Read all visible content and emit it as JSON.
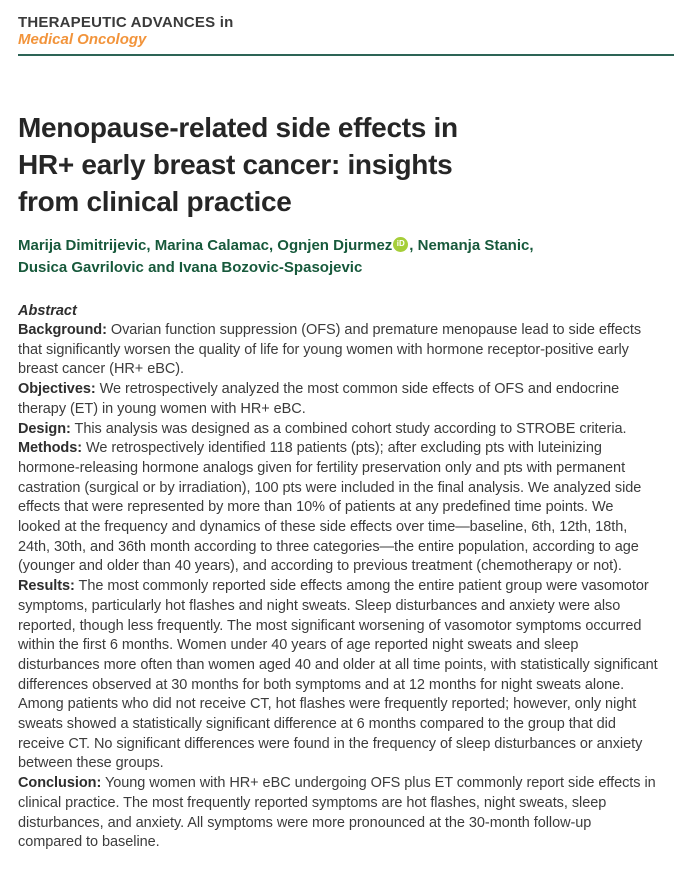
{
  "header": {
    "series_title": "THERAPEUTIC ADVANCES in",
    "journal_name": "Medical Oncology"
  },
  "article": {
    "title": "Menopause-related side effects in\nHR+ early breast cancer: insights\nfrom clinical practice",
    "authors": {
      "line1_before_icon": "Marija Dimitrijevic, Marina Calamac, Ognjen Djurmez",
      "line1_after_icon": ", Nemanja Stanic,",
      "line2": "Dusica Gavrilovic and Ivana Bozovic-Spasojevic"
    },
    "orcid_icon_text": "iD"
  },
  "abstract": {
    "heading": "Abstract",
    "sections": [
      {
        "label": "Background:",
        "text": "Ovarian function suppression (OFS) and premature menopause lead to side effects that significantly worsen the quality of life for young women with hormone receptor-positive early breast cancer (HR+ eBC)."
      },
      {
        "label": "Objectives:",
        "text": "We retrospectively analyzed the most common side effects of OFS and endocrine therapy (ET) in young women with HR+ eBC."
      },
      {
        "label": "Design:",
        "text": "This analysis was designed as a combined cohort study according to STROBE criteria."
      },
      {
        "label": "Methods:",
        "text": "We retrospectively identified 118 patients (pts); after excluding pts with luteinizing hormone-releasing hormone analogs given for fertility preservation only and pts with permanent castration (surgical or by irradiation), 100 pts were included in the final analysis. We analyzed side effects that were represented by more than 10% of patients at any predefined time points. We looked at the frequency and dynamics of these side effects over time—baseline, 6th, 12th, 18th, 24th, 30th, and 36th month according to three categories—the entire population, according to age (younger and older than 40 years), and according to previous treatment (chemotherapy or not)."
      },
      {
        "label": "Results:",
        "text": "The most commonly reported side effects among the entire patient group were vasomotor symptoms, particularly hot flashes and night sweats. Sleep disturbances and anxiety were also reported, though less frequently. The most significant worsening of vasomotor symptoms occurred within the first 6 months. Women under 40 years of age reported night sweats and sleep disturbances more often than women aged 40 and older at all time points, with statistically significant differences observed at 30 months for both symptoms and at 12 months for night sweats alone. Among patients who did not receive CT, hot flashes were frequently reported; however, only night sweats showed a statistically significant difference at 6 months compared to the group that did receive CT. No significant differences were found in the frequency of sleep disturbances or anxiety between these groups."
      },
      {
        "label": "Conclusion:",
        "text": "Young women with HR+ eBC undergoing OFS plus ET commonly report side effects in clinical practice. The most frequently reported symptoms are hot flashes, night sweats, sleep disturbances, and anxiety. All symptoms were more pronounced at the 30-month follow-up compared to baseline."
      }
    ]
  },
  "colors": {
    "journal_orange": "#F2943B",
    "rule_teal": "#2D6456",
    "author_green": "#17593B",
    "orcid_green": "#A6CE39",
    "body_text": "#3C3C3C",
    "label_text": "#2E2E2E",
    "title_text": "#262626"
  }
}
